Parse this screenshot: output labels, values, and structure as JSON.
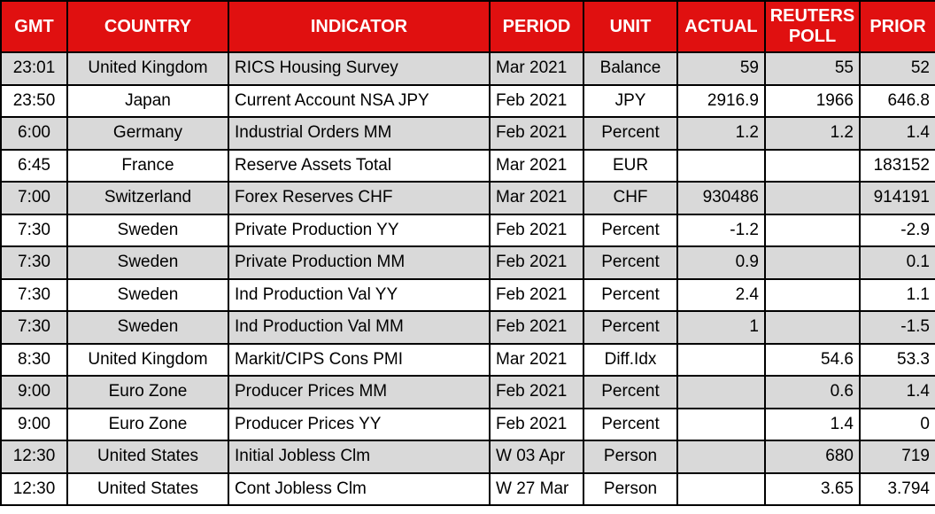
{
  "colors": {
    "header_background": "#e01010",
    "header_text": "#ffffff",
    "stripe_row": "#d9d9d9",
    "white_row": "#ffffff",
    "grid_border": "#000000",
    "body_text": "#000000"
  },
  "chart_data": {
    "type": "table",
    "layout": {
      "striped": true,
      "first_body_row_shade": "gray",
      "grid": true,
      "header_style": "red-background-white-bold-text"
    },
    "columns": [
      {
        "key": "gmt",
        "label": "GMT",
        "align": "center"
      },
      {
        "key": "country",
        "label": "COUNTRY",
        "align": "center"
      },
      {
        "key": "indicator",
        "label": "INDICATOR",
        "align": "left"
      },
      {
        "key": "period",
        "label": "PERIOD",
        "align": "left"
      },
      {
        "key": "unit",
        "label": "UNIT",
        "align": "center"
      },
      {
        "key": "actual",
        "label": "ACTUAL",
        "align": "right"
      },
      {
        "key": "reuters_poll",
        "label": "REUTERS POLL",
        "align": "right"
      },
      {
        "key": "prior",
        "label": "PRIOR",
        "align": "right"
      }
    ],
    "rows": [
      {
        "gmt": "23:01",
        "country": "United Kingdom",
        "indicator": "RICS Housing Survey",
        "period": "Mar 2021",
        "unit": "Balance",
        "actual": "59",
        "reuters_poll": "55",
        "prior": "52"
      },
      {
        "gmt": "23:50",
        "country": "Japan",
        "indicator": "Current Account NSA JPY",
        "period": "Feb 2021",
        "unit": "JPY",
        "actual": "2916.9",
        "reuters_poll": "1966",
        "prior": "646.8"
      },
      {
        "gmt": "6:00",
        "country": "Germany",
        "indicator": "Industrial Orders MM",
        "period": "Feb 2021",
        "unit": "Percent",
        "actual": "1.2",
        "reuters_poll": "1.2",
        "prior": "1.4"
      },
      {
        "gmt": "6:45",
        "country": "France",
        "indicator": "Reserve Assets Total",
        "period": "Mar 2021",
        "unit": "EUR",
        "actual": "",
        "reuters_poll": "",
        "prior": "183152"
      },
      {
        "gmt": "7:00",
        "country": "Switzerland",
        "indicator": "Forex Reserves CHF",
        "period": "Mar 2021",
        "unit": "CHF",
        "actual": "930486",
        "reuters_poll": "",
        "prior": "914191"
      },
      {
        "gmt": "7:30",
        "country": "Sweden",
        "indicator": "Private Production YY",
        "period": "Feb 2021",
        "unit": "Percent",
        "actual": "-1.2",
        "reuters_poll": "",
        "prior": "-2.9"
      },
      {
        "gmt": "7:30",
        "country": "Sweden",
        "indicator": "Private Production MM",
        "period": "Feb 2021",
        "unit": "Percent",
        "actual": "0.9",
        "reuters_poll": "",
        "prior": "0.1"
      },
      {
        "gmt": "7:30",
        "country": "Sweden",
        "indicator": "Ind Production Val YY",
        "period": "Feb 2021",
        "unit": "Percent",
        "actual": "2.4",
        "reuters_poll": "",
        "prior": "1.1"
      },
      {
        "gmt": "7:30",
        "country": "Sweden",
        "indicator": "Ind Production Val MM",
        "period": "Feb 2021",
        "unit": "Percent",
        "actual": "1",
        "reuters_poll": "",
        "prior": "-1.5"
      },
      {
        "gmt": "8:30",
        "country": "United Kingdom",
        "indicator": "Markit/CIPS Cons PMI",
        "period": "Mar 2021",
        "unit": "Diff.Idx",
        "actual": "",
        "reuters_poll": "54.6",
        "prior": "53.3"
      },
      {
        "gmt": "9:00",
        "country": "Euro Zone",
        "indicator": "Producer Prices MM",
        "period": "Feb 2021",
        "unit": "Percent",
        "actual": "",
        "reuters_poll": "0.6",
        "prior": "1.4"
      },
      {
        "gmt": "9:00",
        "country": "Euro Zone",
        "indicator": "Producer Prices YY",
        "period": "Feb 2021",
        "unit": "Percent",
        "actual": "",
        "reuters_poll": "1.4",
        "prior": "0"
      },
      {
        "gmt": "12:30",
        "country": "United States",
        "indicator": "Initial Jobless Clm",
        "period": "W 03 Apr",
        "unit": "Person",
        "actual": "",
        "reuters_poll": "680",
        "prior": "719"
      },
      {
        "gmt": "12:30",
        "country": "United States",
        "indicator": "Cont Jobless Clm",
        "period": "W 27 Mar",
        "unit": "Person",
        "actual": "",
        "reuters_poll": "3.65",
        "prior": "3.794"
      }
    ]
  }
}
